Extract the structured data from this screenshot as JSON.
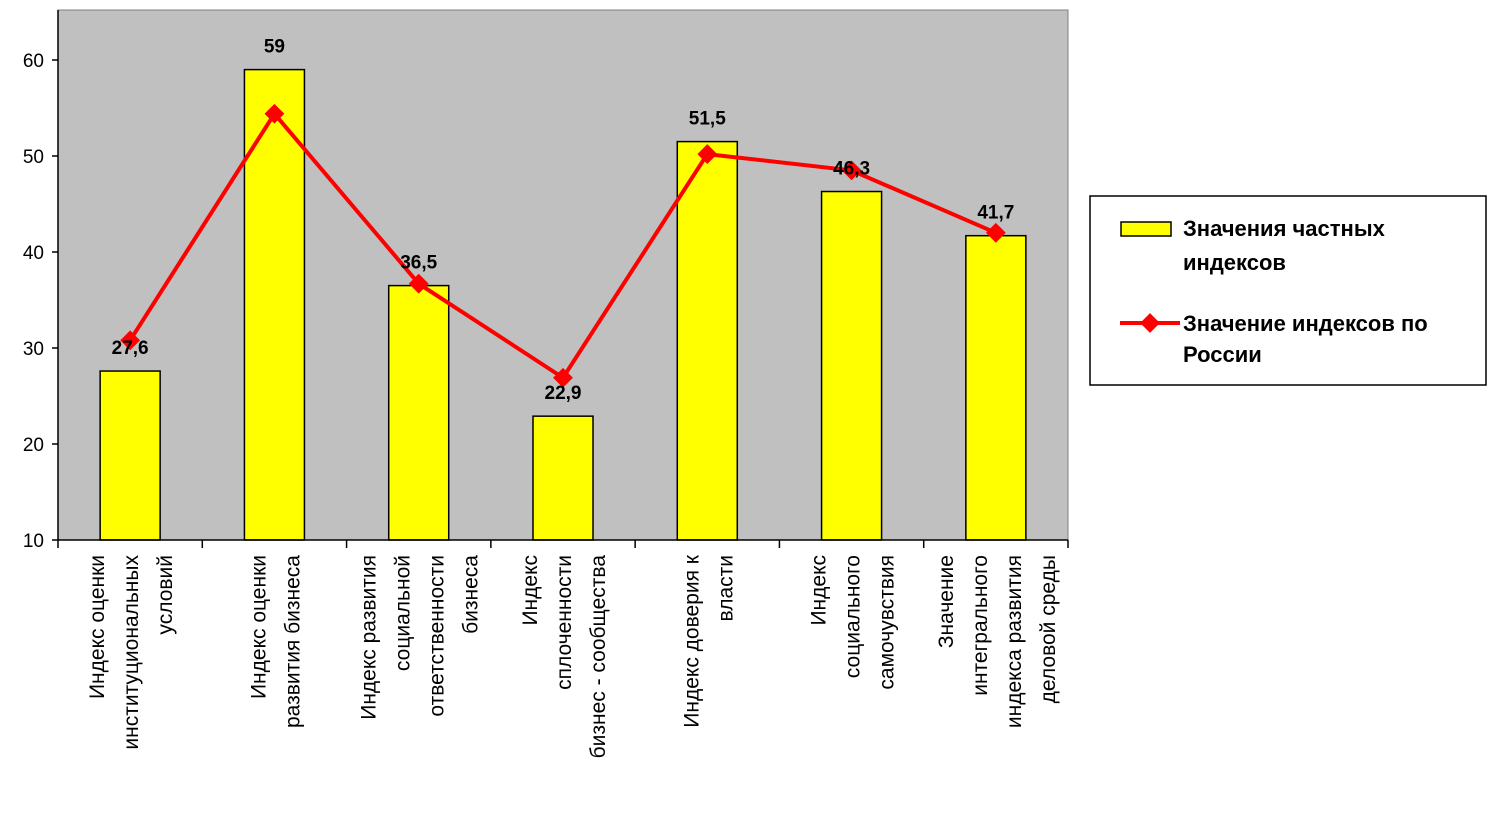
{
  "chart_data": {
    "type": "bar",
    "categories": [
      [
        "Индекс оценки",
        "институциональных",
        "условий"
      ],
      [
        "Индекс оценки",
        "развития бизнеса"
      ],
      [
        "Индекс развития",
        "социальной",
        "ответственности",
        "бизнеса"
      ],
      [
        "Индекс",
        "сплоченности",
        "бизнес - сообщества"
      ],
      [
        "Индекс доверия к",
        "власти"
      ],
      [
        "Индекс",
        "социального",
        "самочувствия"
      ],
      [
        "Значение",
        "интегрального",
        "индекса развития",
        "деловой среды"
      ]
    ],
    "series": [
      {
        "name": "Значения частных индексов",
        "type": "bar",
        "color": "#ffff00",
        "values": [
          27.6,
          59,
          36.5,
          22.9,
          51.5,
          46.3,
          41.7
        ],
        "labels": [
          "27,6",
          "59",
          "36,5",
          "22,9",
          "51,5",
          "46,3",
          "41,7"
        ]
      },
      {
        "name": "Значение индексов по России",
        "type": "line",
        "color": "#ff0000",
        "values": [
          30.8,
          54.4,
          36.7,
          26.9,
          50.2,
          48.5,
          42.0
        ]
      }
    ],
    "yticks": [
      "10",
      "20",
      "30",
      "40",
      "50",
      "60"
    ],
    "ylim": [
      10,
      65
    ],
    "plot_background": "#c0c0c0",
    "grid": false,
    "legend_position": "right"
  }
}
